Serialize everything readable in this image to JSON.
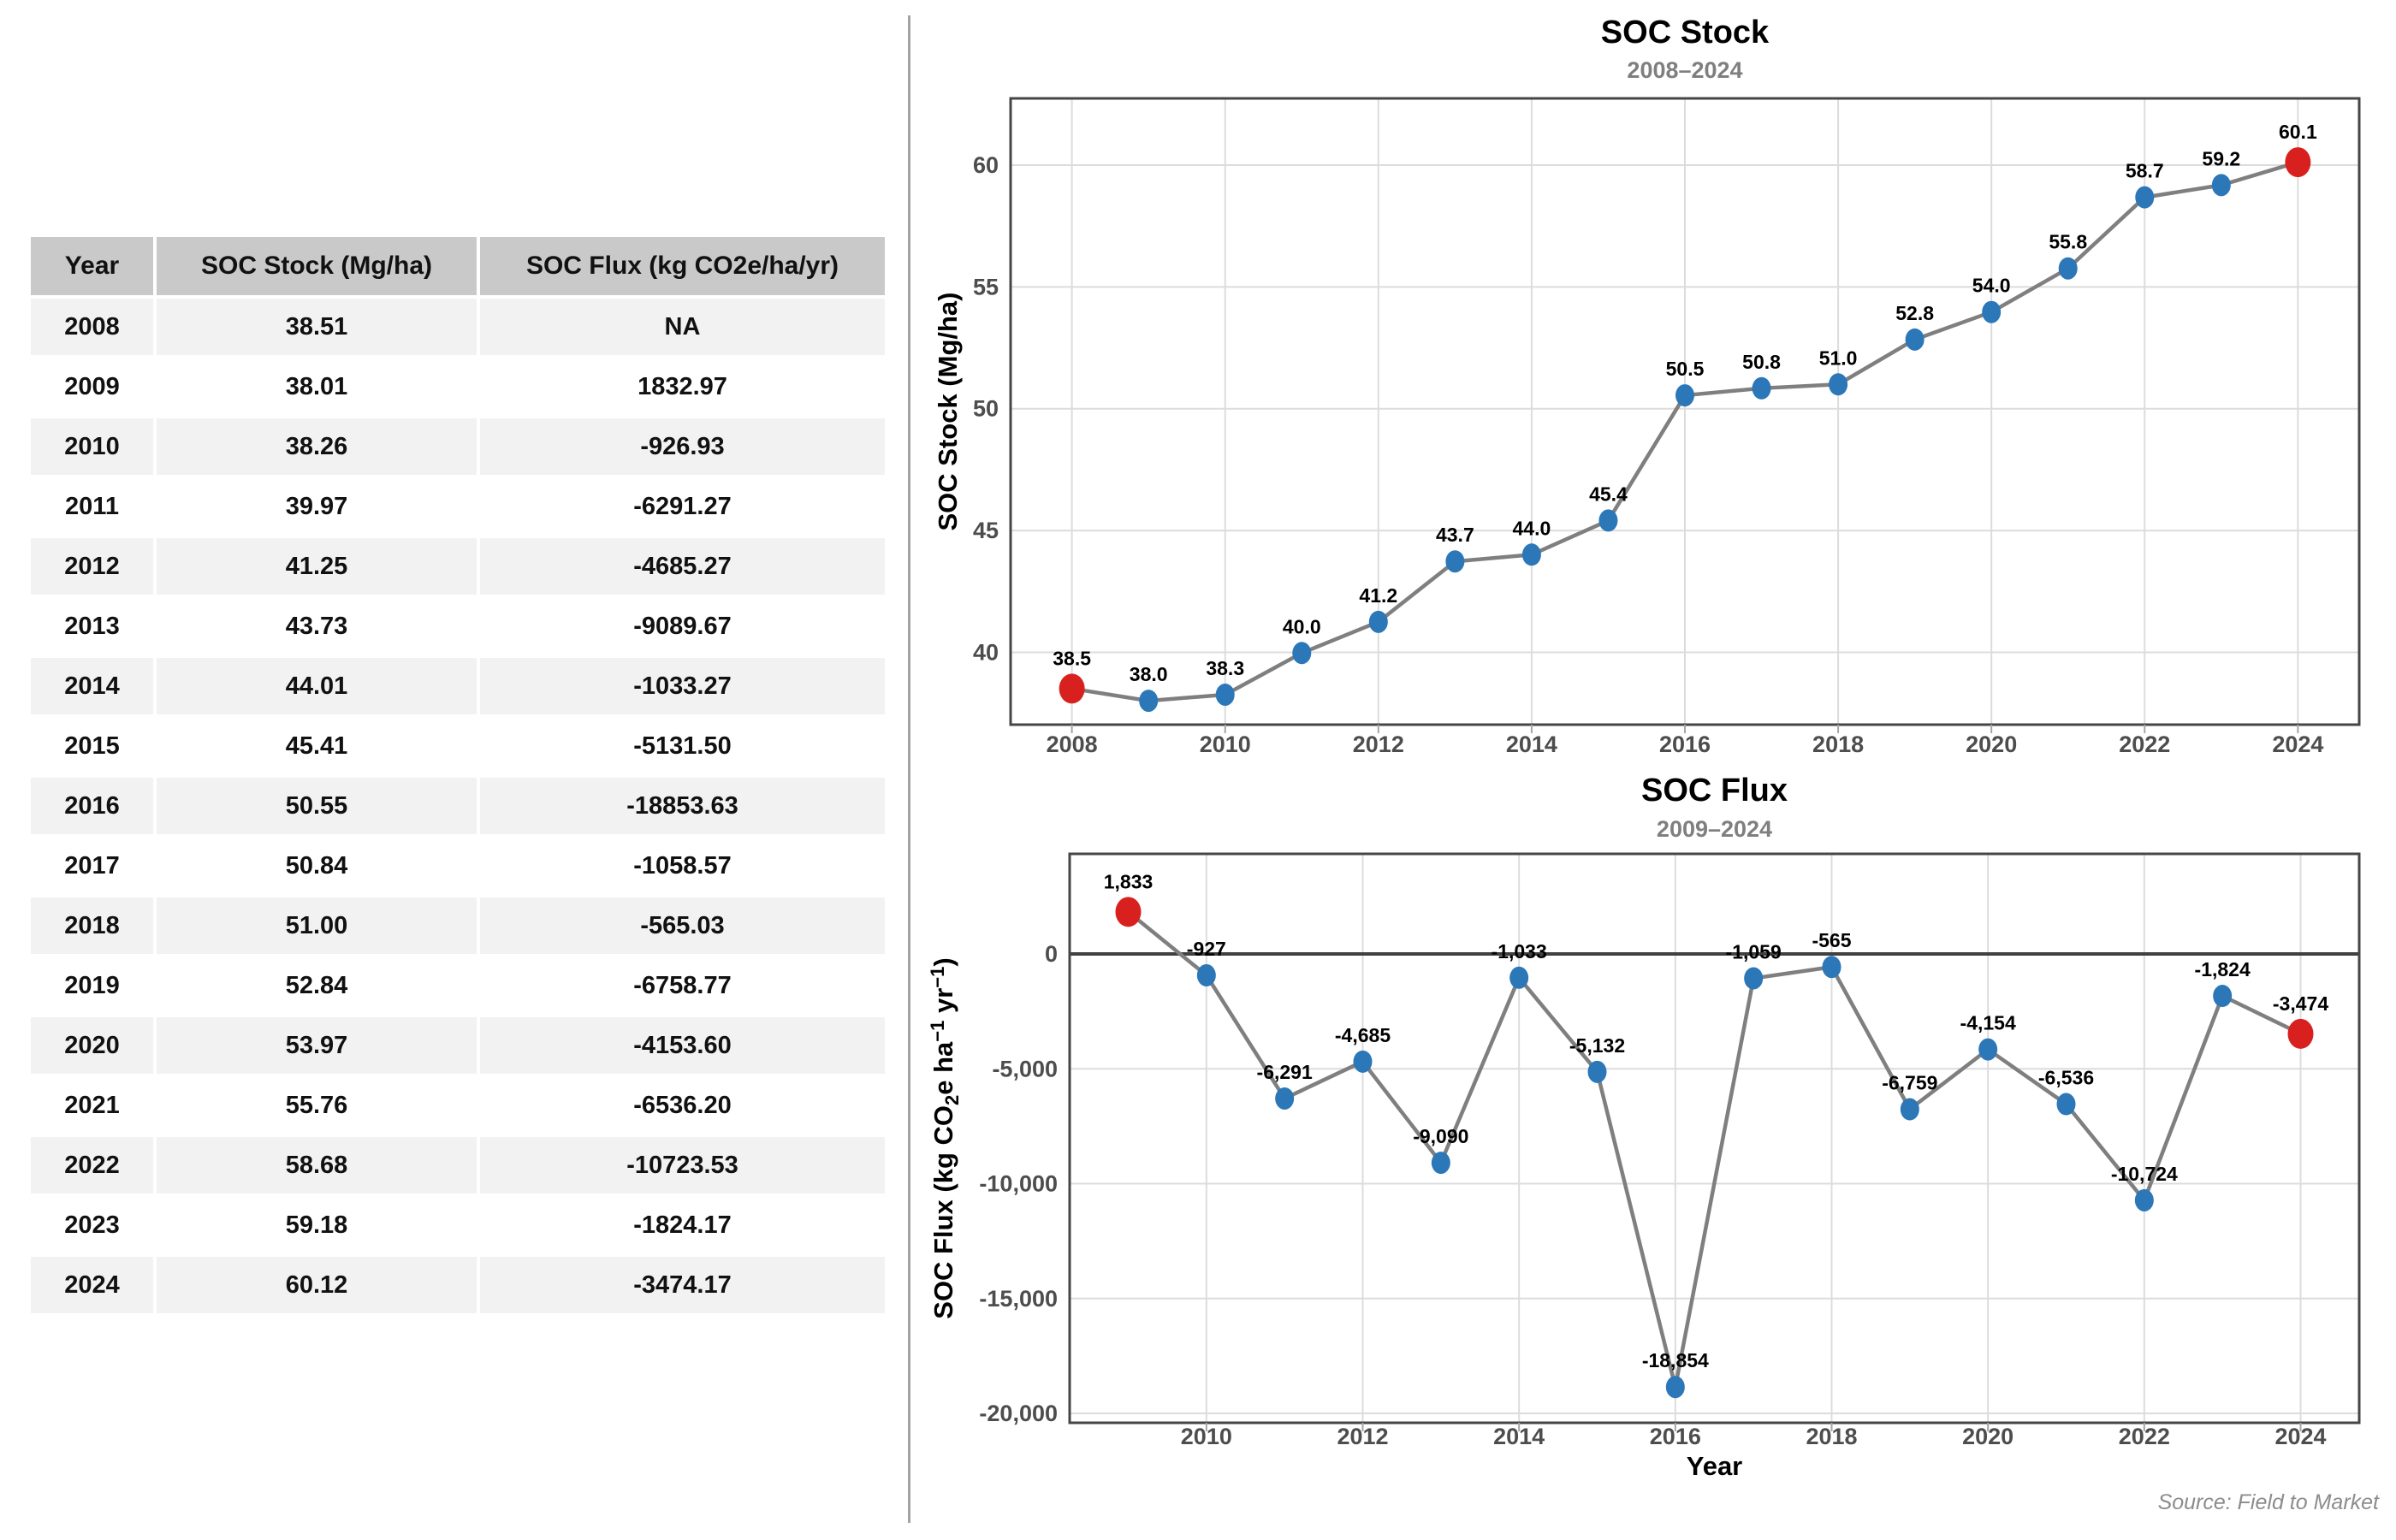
{
  "palette": {
    "point_blue": "#2b77b8",
    "point_red": "#d8211f",
    "line_gray": "#7f7f7f",
    "grid_gray": "#dcdcdc",
    "panel_border": "#464646",
    "zero_line": "#404040",
    "tick_text": "#4d4d4d",
    "axis_title_text": "#000000",
    "title_text": "#000000",
    "subtitle_text": "#7f7f7f",
    "source_text": "#8c8c8c",
    "table_header_bg": "#c9c9c9",
    "table_alt_row_bg": "#f2f2f2"
  },
  "table": {
    "headers": [
      "Year",
      "SOC Stock (Mg/ha)",
      "SOC Flux (kg CO2e/ha/yr)"
    ],
    "rows": [
      [
        "2008",
        "38.51",
        "NA"
      ],
      [
        "2009",
        "38.01",
        "1832.97"
      ],
      [
        "2010",
        "38.26",
        "-926.93"
      ],
      [
        "2011",
        "39.97",
        "-6291.27"
      ],
      [
        "2012",
        "41.25",
        "-4685.27"
      ],
      [
        "2013",
        "43.73",
        "-9089.67"
      ],
      [
        "2014",
        "44.01",
        "-1033.27"
      ],
      [
        "2015",
        "45.41",
        "-5131.50"
      ],
      [
        "2016",
        "50.55",
        "-18853.63"
      ],
      [
        "2017",
        "50.84",
        "-1058.57"
      ],
      [
        "2018",
        "51.00",
        "-565.03"
      ],
      [
        "2019",
        "52.84",
        "-6758.77"
      ],
      [
        "2020",
        "53.97",
        "-4153.60"
      ],
      [
        "2021",
        "55.76",
        "-6536.20"
      ],
      [
        "2022",
        "58.68",
        "-10723.53"
      ],
      [
        "2023",
        "59.18",
        "-1824.17"
      ],
      [
        "2024",
        "60.12",
        "-3474.17"
      ]
    ]
  },
  "source_note": "Source: Field to Market",
  "chart_data": [
    {
      "type": "line",
      "title": "SOC Stock",
      "subtitle": "2008–2024",
      "xlabel": "",
      "ylabel": "SOC Stock (Mg/ha)",
      "ylabel_parts": [
        {
          "t": "SOC Stock (Mg/ha)"
        }
      ],
      "x": [
        2008,
        2009,
        2010,
        2011,
        2012,
        2013,
        2014,
        2015,
        2016,
        2017,
        2018,
        2019,
        2020,
        2021,
        2022,
        2023,
        2024
      ],
      "y": [
        38.51,
        38.01,
        38.26,
        39.97,
        41.25,
        43.73,
        44.01,
        45.41,
        50.55,
        50.84,
        51.0,
        52.84,
        53.97,
        55.76,
        58.68,
        59.18,
        60.12
      ],
      "point_labels": [
        "38.5",
        "38.0",
        "38.3",
        "40.0",
        "41.2",
        "43.7",
        "44.0",
        "45.4",
        "50.5",
        "50.8",
        "51.0",
        "52.8",
        "54.0",
        "55.8",
        "58.7",
        "59.2",
        "60.1"
      ],
      "point_colors": [
        "red",
        "blue",
        "blue",
        "blue",
        "blue",
        "blue",
        "blue",
        "blue",
        "blue",
        "blue",
        "blue",
        "blue",
        "blue",
        "blue",
        "blue",
        "blue",
        "red"
      ],
      "xlim": [
        2007.2,
        2024.8
      ],
      "ylim": [
        37.03,
        62.74
      ],
      "xticks": [
        {
          "v": 2008,
          "label": "2008"
        },
        {
          "v": 2010,
          "label": "2010"
        },
        {
          "v": 2012,
          "label": "2012"
        },
        {
          "v": 2014,
          "label": "2014"
        },
        {
          "v": 2016,
          "label": "2016"
        },
        {
          "v": 2018,
          "label": "2018"
        },
        {
          "v": 2020,
          "label": "2020"
        },
        {
          "v": 2022,
          "label": "2022"
        },
        {
          "v": 2024,
          "label": "2024"
        }
      ],
      "yticks": [
        {
          "v": 40,
          "label": "40"
        },
        {
          "v": 45,
          "label": "45"
        },
        {
          "v": 50,
          "label": "50"
        },
        {
          "v": 55,
          "label": "55"
        },
        {
          "v": 60,
          "label": "60"
        }
      ],
      "grid": true,
      "zero_line": false
    },
    {
      "type": "line",
      "title": "SOC Flux",
      "subtitle": "2009–2024",
      "xlabel": "Year",
      "ylabel": "SOC Flux (kg CO₂e ha⁻¹ yr⁻¹)",
      "ylabel_parts": [
        {
          "t": "SOC Flux (kg CO"
        },
        {
          "t": "2",
          "sub": true
        },
        {
          "t": "e ha"
        },
        {
          "t": "−1",
          "sup": true
        },
        {
          "t": " yr"
        },
        {
          "t": "−1",
          "sup": true
        },
        {
          "t": ")"
        }
      ],
      "x": [
        2009,
        2010,
        2011,
        2012,
        2013,
        2014,
        2015,
        2016,
        2017,
        2018,
        2019,
        2020,
        2021,
        2022,
        2023,
        2024
      ],
      "y": [
        1832.97,
        -926.93,
        -6291.27,
        -4685.27,
        -9089.67,
        -1033.27,
        -5131.5,
        -18853.63,
        -1058.57,
        -565.03,
        -6758.77,
        -4153.6,
        -6536.2,
        -10723.53,
        -1824.17,
        -3474.17
      ],
      "point_labels": [
        "1,833",
        "-927",
        "-6,291",
        "-4,685",
        "-9,090",
        "-1,033",
        "-5,132",
        "-18,854",
        "-1,059",
        "-565",
        "-6,759",
        "-4,154",
        "-6,536",
        "-10,724",
        "-1,824",
        "-3,474"
      ],
      "point_colors": [
        "red",
        "blue",
        "blue",
        "blue",
        "blue",
        "blue",
        "blue",
        "blue",
        "blue",
        "blue",
        "blue",
        "blue",
        "blue",
        "blue",
        "blue",
        "red"
      ],
      "xlim": [
        2008.25,
        2024.75
      ],
      "ylim": [
        -20410,
        4360
      ],
      "xticks": [
        {
          "v": 2010,
          "label": "2010"
        },
        {
          "v": 2012,
          "label": "2012"
        },
        {
          "v": 2014,
          "label": "2014"
        },
        {
          "v": 2016,
          "label": "2016"
        },
        {
          "v": 2018,
          "label": "2018"
        },
        {
          "v": 2020,
          "label": "2020"
        },
        {
          "v": 2022,
          "label": "2022"
        },
        {
          "v": 2024,
          "label": "2024"
        }
      ],
      "yticks": [
        {
          "v": 0,
          "label": "0"
        },
        {
          "v": -5000,
          "label": "-5,000"
        },
        {
          "v": -10000,
          "label": "-10,000"
        },
        {
          "v": -15000,
          "label": "-15,000"
        },
        {
          "v": -20000,
          "label": "-20,000"
        }
      ],
      "grid": true,
      "zero_line": true
    }
  ]
}
